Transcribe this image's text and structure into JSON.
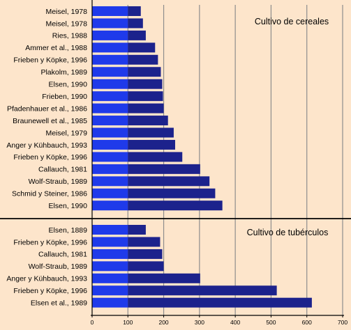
{
  "chart_data": {
    "type": "bar",
    "orientation": "horizontal",
    "xlim": [
      0,
      700
    ],
    "x_ticks": [
      "0",
      "100",
      "200",
      "300",
      "400",
      "500",
      "600",
      "700"
    ],
    "grid": "vertical",
    "colors": {
      "background": "#fde5cb",
      "bar_light": "#1f3aea",
      "bar_dark": "#1c228c",
      "bar_split_at": 100
    },
    "panels": [
      {
        "title": "Cultivo de cereales",
        "categories": [
          "Meisel, 1978",
          "Meisel, 1978",
          "Ries, 1988",
          "Ammer et al., 1988",
          "Frieben y Köpke, 1996",
          "Plakolm, 1989",
          "Elsen, 1990",
          "Frieben, 1990",
          "Pfadenhauer et al., 1986",
          "Braunewell et al., 1985",
          "Meisel, 1979",
          "Anger y Kühbauch, 1993",
          "Frieben y Köpke, 1996",
          "Callauch, 1981",
          "Wolf-Straub, 1989",
          "Schmid y Steiner, 1986",
          "Elsen, 1990"
        ],
        "values": [
          136,
          142,
          150,
          176,
          184,
          192,
          196,
          198,
          200,
          212,
          228,
          232,
          252,
          302,
          328,
          344,
          364
        ]
      },
      {
        "title": "Cultivo de tubérculos",
        "categories": [
          "Elsen, 1889",
          "Frieben y Köpke, 1996",
          "Callauch, 1981",
          "Wolf-Straub, 1989",
          "Anger y Kühbauch, 1993",
          "Frieben y Köpke, 1996",
          "Elsen et al., 1989"
        ],
        "values": [
          150,
          190,
          196,
          200,
          302,
          516,
          614
        ]
      }
    ]
  }
}
